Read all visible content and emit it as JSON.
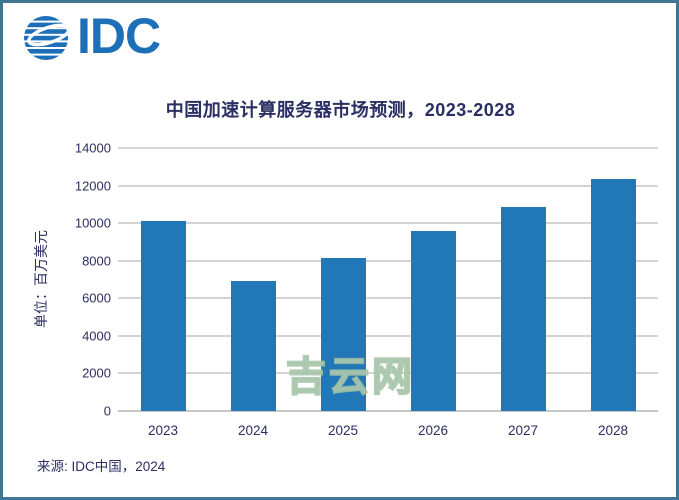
{
  "logo": {
    "text": "IDC",
    "color": "#1d70b7"
  },
  "chart_data": {
    "type": "bar",
    "title": "中国加速计算服务器市场预测，2023-2028",
    "categories": [
      "2023",
      "2024",
      "2025",
      "2026",
      "2027",
      "2028"
    ],
    "values": [
      10100,
      6900,
      8150,
      9600,
      10850,
      12350
    ],
    "xlabel": "",
    "ylabel": "单位：百万美元",
    "ylim": [
      0,
      14000
    ],
    "ytick_step": 2000,
    "yticks": [
      0,
      2000,
      4000,
      6000,
      8000,
      10000,
      12000,
      14000
    ],
    "grid": true,
    "legend": false,
    "bar_color": "#2277b6"
  },
  "watermark": "吉云网",
  "source": "来源: IDC中国，2024",
  "colors": {
    "text": "#2b2e62",
    "grid": "#a8a8a8",
    "frame_border": "#3f7694",
    "bar": "#2277b6",
    "logo_blue": "#1d70b7",
    "watermark_green": "#a0c0a3"
  }
}
